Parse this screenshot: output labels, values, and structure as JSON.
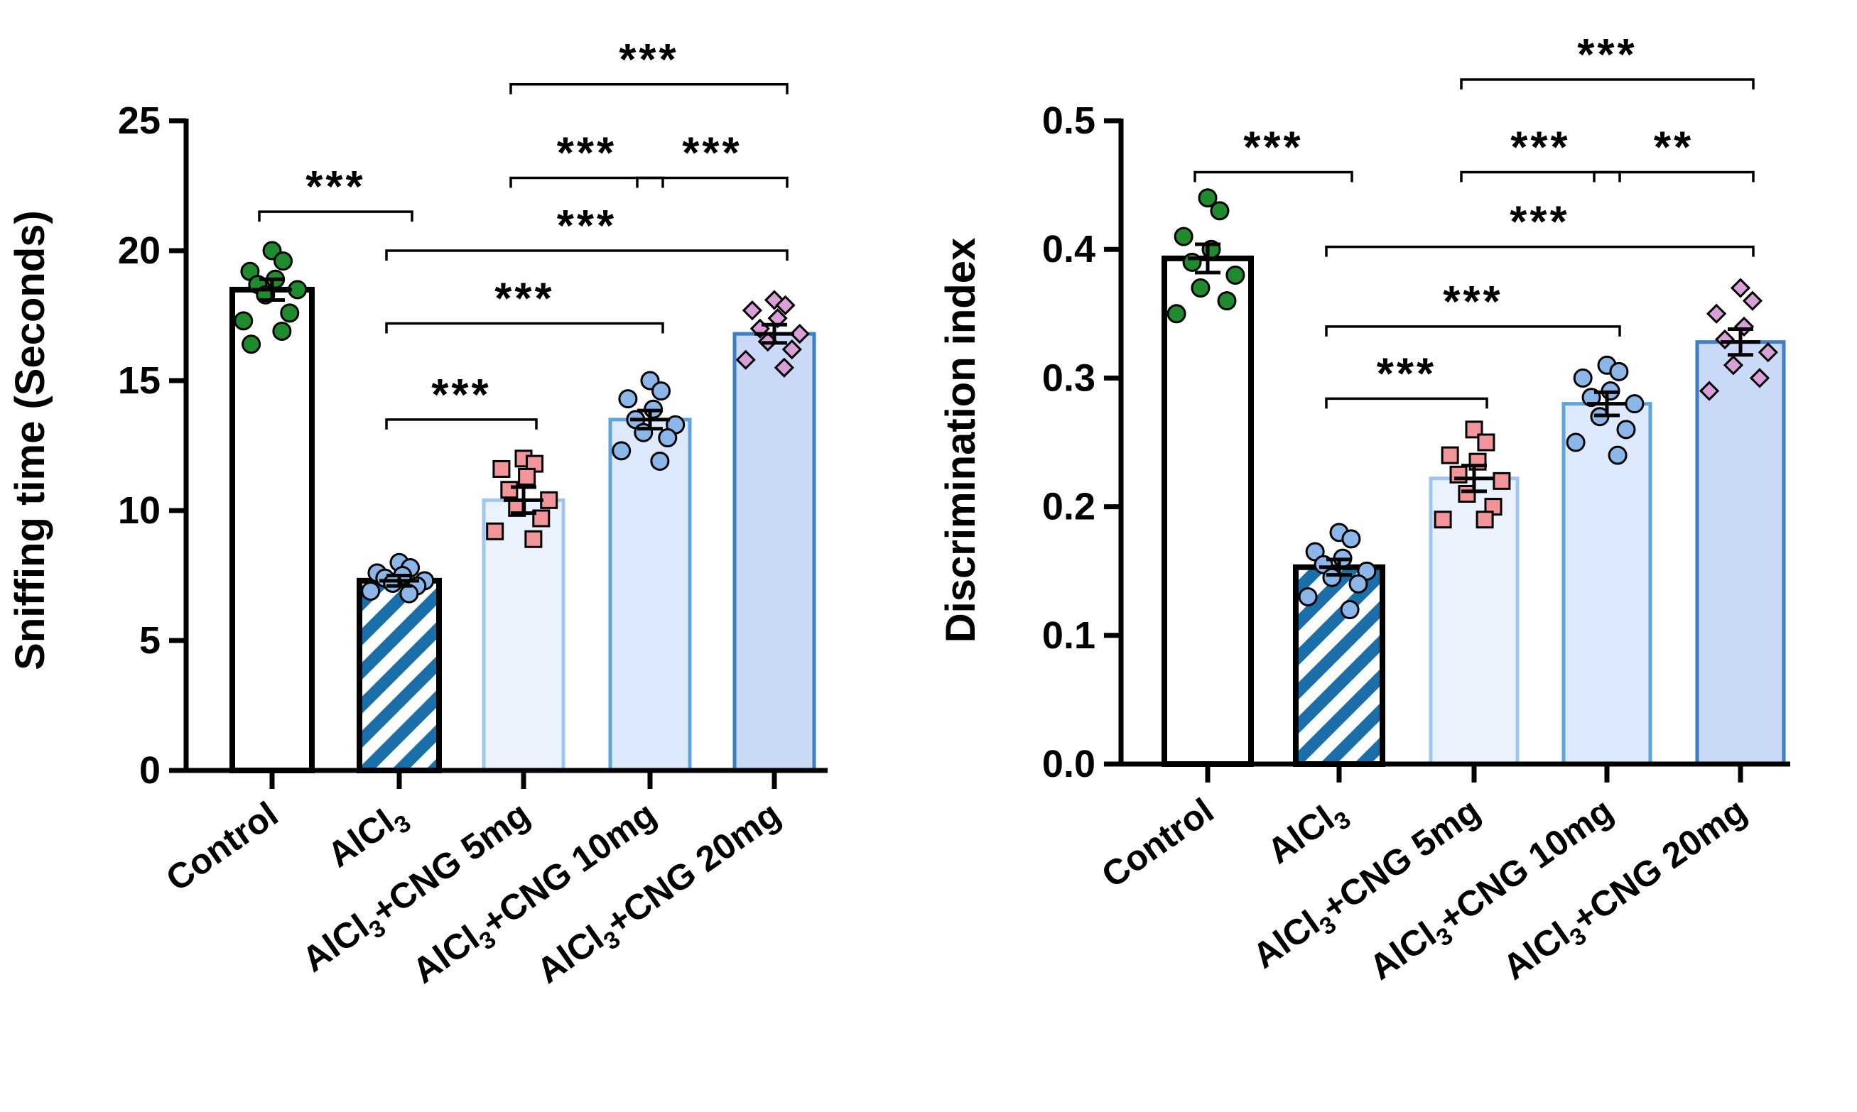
{
  "chart_data": [
    {
      "type": "bar",
      "title": "",
      "xlabel": "",
      "ylabel": "Sniffing time (Seconds)",
      "ylim": [
        0,
        25
      ],
      "yticks": [
        0,
        5,
        10,
        15,
        20,
        25
      ],
      "grid": false,
      "categories": [
        "Control",
        "AlCl3",
        "AlCl3+CNG 5mg",
        "AlCl3+CNG 10mg",
        "AlCl3+CNG 20mg"
      ],
      "category_labels": [
        {
          "main": "Control",
          "sub": "",
          "rest": ""
        },
        {
          "main": "AlCl",
          "sub": "3",
          "rest": ""
        },
        {
          "main": "AlCl",
          "sub": "3",
          "rest": "+CNG 5mg"
        },
        {
          "main": "AlCl",
          "sub": "3",
          "rest": "+CNG 10mg"
        },
        {
          "main": "AlCl",
          "sub": "3",
          "rest": "+CNG 20mg"
        }
      ],
      "values": [
        18.5,
        7.3,
        10.4,
        13.5,
        16.8
      ],
      "sem": [
        0.4,
        0.2,
        0.5,
        0.35,
        0.35
      ],
      "points": [
        [
          20.0,
          19.6,
          19.2,
          18.9,
          18.7,
          18.5,
          18.3,
          17.6,
          17.3,
          16.9,
          16.4
        ],
        [
          8.0,
          7.8,
          7.6,
          7.5,
          7.4,
          7.3,
          7.2,
          7.1,
          6.9,
          6.8
        ],
        [
          12.0,
          11.8,
          11.6,
          11.3,
          10.8,
          10.4,
          10.1,
          9.7,
          9.2,
          8.9
        ],
        [
          15.0,
          14.6,
          14.3,
          13.9,
          13.5,
          13.3,
          13.0,
          12.8,
          12.3,
          11.9
        ],
        [
          18.1,
          17.9,
          17.7,
          17.4,
          17.0,
          16.8,
          16.5,
          16.2,
          15.8,
          15.5
        ]
      ],
      "comparisons": [
        {
          "from": 0,
          "to": 1,
          "label": "***",
          "y": 21.5
        },
        {
          "from": 1,
          "to": 2,
          "label": "***",
          "y": 13.5
        },
        {
          "from": 1,
          "to": 3,
          "label": "***",
          "y": 17.2
        },
        {
          "from": 1,
          "to": 4,
          "label": "***",
          "y": 20.0
        },
        {
          "from": 2,
          "to": 3,
          "label": "***",
          "y": 22.8
        },
        {
          "from": 3,
          "to": 4,
          "label": "***",
          "y": 22.8
        },
        {
          "from": 2,
          "to": 4,
          "label": "***",
          "y": 26.4
        }
      ]
    },
    {
      "type": "bar",
      "title": "",
      "xlabel": "",
      "ylabel": "Discrimination index",
      "ylim": [
        0,
        0.5
      ],
      "yticks": [
        0.0,
        0.1,
        0.2,
        0.3,
        0.4,
        0.5
      ],
      "grid": false,
      "categories": [
        "Control",
        "AlCl3",
        "AlCl3+CNG 5mg",
        "AlCl3+CNG 10mg",
        "AlCl3+CNG 20mg"
      ],
      "category_labels": [
        {
          "main": "Control",
          "sub": "",
          "rest": ""
        },
        {
          "main": "AlCl",
          "sub": "3",
          "rest": ""
        },
        {
          "main": "AlCl",
          "sub": "3",
          "rest": "+CNG 5mg"
        },
        {
          "main": "AlCl",
          "sub": "3",
          "rest": "+CNG 10mg"
        },
        {
          "main": "AlCl",
          "sub": "3",
          "rest": "+CNG 20mg"
        }
      ],
      "values": [
        0.393,
        0.153,
        0.222,
        0.28,
        0.328
      ],
      "sem": [
        0.011,
        0.006,
        0.01,
        0.009,
        0.01
      ],
      "points": [
        [
          0.44,
          0.43,
          0.41,
          0.4,
          0.39,
          0.38,
          0.37,
          0.36,
          0.35
        ],
        [
          0.18,
          0.175,
          0.165,
          0.16,
          0.155,
          0.15,
          0.145,
          0.14,
          0.13,
          0.12
        ],
        [
          0.26,
          0.25,
          0.24,
          0.235,
          0.225,
          0.22,
          0.21,
          0.2,
          0.19,
          0.19
        ],
        [
          0.31,
          0.305,
          0.3,
          0.29,
          0.285,
          0.28,
          0.27,
          0.26,
          0.25,
          0.24
        ],
        [
          0.37,
          0.36,
          0.35,
          0.34,
          0.33,
          0.32,
          0.31,
          0.3,
          0.29
        ]
      ],
      "comparisons": [
        {
          "from": 0,
          "to": 1,
          "label": "***",
          "y": 0.46
        },
        {
          "from": 1,
          "to": 2,
          "label": "***",
          "y": 0.284
        },
        {
          "from": 1,
          "to": 3,
          "label": "***",
          "y": 0.34
        },
        {
          "from": 1,
          "to": 4,
          "label": "***",
          "y": 0.402
        },
        {
          "from": 2,
          "to": 3,
          "label": "***",
          "y": 0.46
        },
        {
          "from": 3,
          "to": 4,
          "label": "**",
          "y": 0.46
        },
        {
          "from": 2,
          "to": 4,
          "label": "***",
          "y": 0.532
        }
      ]
    }
  ],
  "colors": {
    "axis": "#000000",
    "bars": [
      {
        "fill": "#ffffff",
        "stroke": "#000000"
      },
      {
        "fill": "stripes",
        "stroke": "#000000",
        "stripe_a": "#1a6fa8",
        "stripe_b": "#ffffff"
      },
      {
        "fill": "#eaf2fe",
        "stroke": "#9ec6f0"
      },
      {
        "fill": "#dde9fc",
        "stroke": "#5ea3dc"
      },
      {
        "fill": "#cad9f7",
        "stroke": "#3d7ec4"
      }
    ],
    "points": [
      {
        "fill": "#1f8a2e",
        "shape": "circle"
      },
      {
        "fill": "#8cb5e8",
        "shape": "circle"
      },
      {
        "fill": "#f2959a",
        "shape": "square"
      },
      {
        "fill": "#8cb5e8",
        "shape": "circle"
      },
      {
        "fill": "#d9a0d8",
        "shape": "diamond"
      }
    ]
  }
}
